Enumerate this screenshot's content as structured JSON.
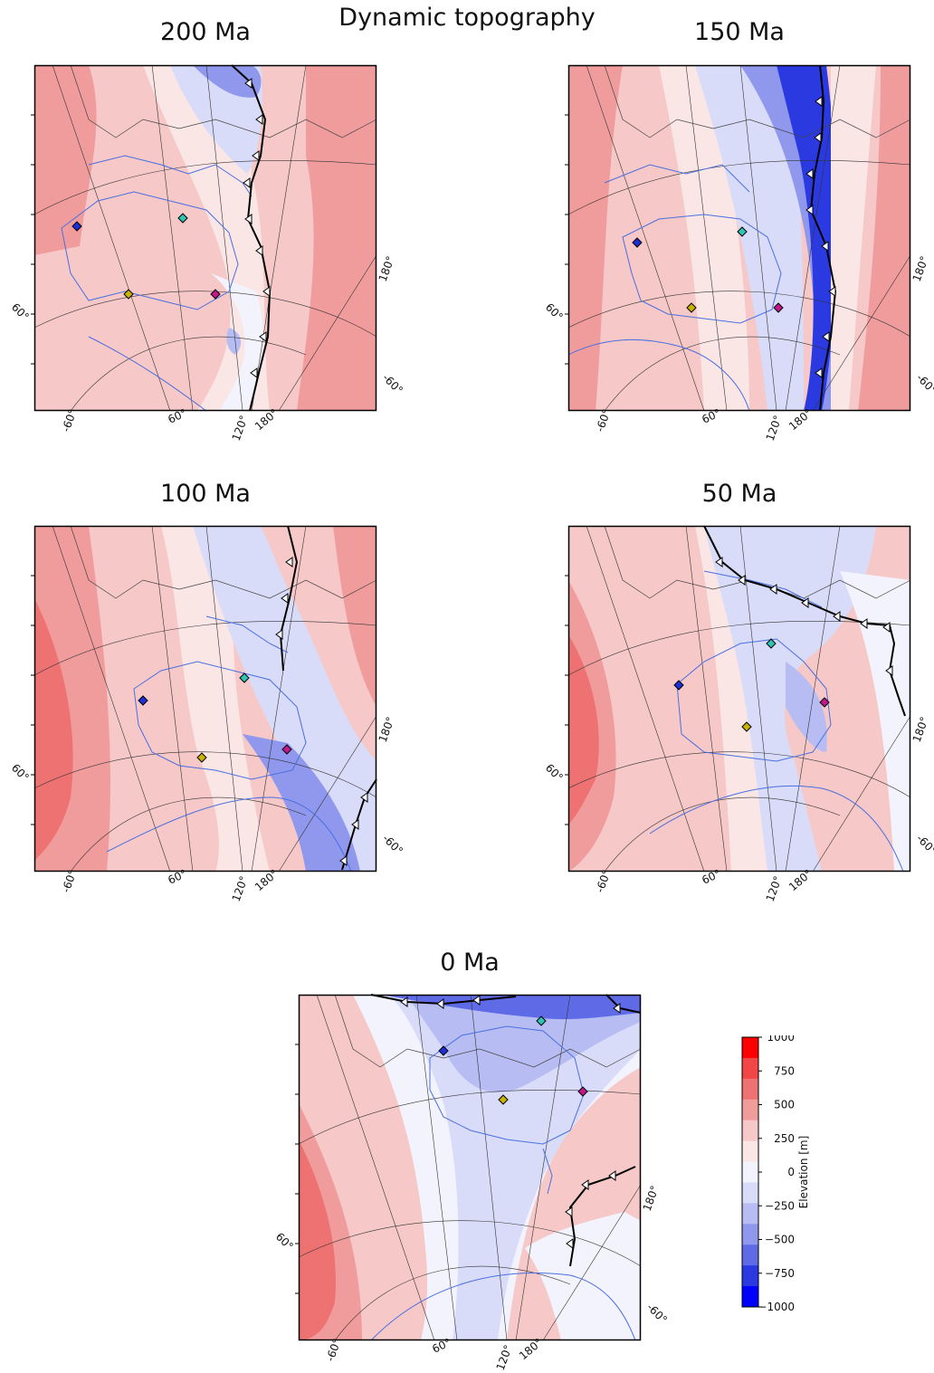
{
  "figure": {
    "title": "Dynamic topography"
  },
  "panels": [
    {
      "id": "p200",
      "title": "200 Ma",
      "lon_labels": [
        "-60°",
        "60°",
        "120°",
        "180°"
      ],
      "side_labels": [
        "60°",
        "180°",
        "-60°"
      ]
    },
    {
      "id": "p150",
      "title": "150 Ma",
      "lon_labels": [
        "-60°",
        "60°",
        "120°",
        "180°"
      ],
      "side_labels": [
        "60°",
        "180°",
        "-60°"
      ]
    },
    {
      "id": "p100",
      "title": "100 Ma",
      "lon_labels": [
        "-60°",
        "60°",
        "120°",
        "180°"
      ],
      "side_labels": [
        "60°",
        "180°",
        "-60°"
      ]
    },
    {
      "id": "p50",
      "title": "50 Ma",
      "lon_labels": [
        "-60°",
        "60°",
        "120°",
        "180°"
      ],
      "side_labels": [
        "60°",
        "180°",
        "-60°"
      ]
    },
    {
      "id": "p0",
      "title": "0 Ma",
      "lon_labels": [
        "-60°",
        "60°",
        "120°",
        "180°"
      ],
      "side_labels": [
        "60°",
        "180°",
        "-60°"
      ]
    }
  ],
  "sites": [
    {
      "name": "site-blue",
      "color": "#1f2fd8"
    },
    {
      "name": "site-cyan",
      "color": "#2ec4b6"
    },
    {
      "name": "site-yellow",
      "color": "#c9b400"
    },
    {
      "name": "site-magenta",
      "color": "#c2188b"
    }
  ],
  "colorbar": {
    "label": "Elevation [m]",
    "ticks": [
      "1000",
      "750",
      "500",
      "250",
      "0",
      "−250",
      "−500",
      "−750",
      "−1000"
    ],
    "range": [
      -1000,
      1000
    ],
    "colors": [
      "#ff0000",
      "#f24545",
      "#ef7272",
      "#f19c9c",
      "#f6c8c8",
      "#fbe6e6",
      "#f3f3fd",
      "#d8dcf8",
      "#b7bdf2",
      "#8f98ec",
      "#5e6ae6",
      "#2a3ae0",
      "#0000ff"
    ]
  },
  "colors": {
    "coast": "#4a6fe0",
    "plate_boundary": "#000000",
    "graticule": "#333333"
  }
}
